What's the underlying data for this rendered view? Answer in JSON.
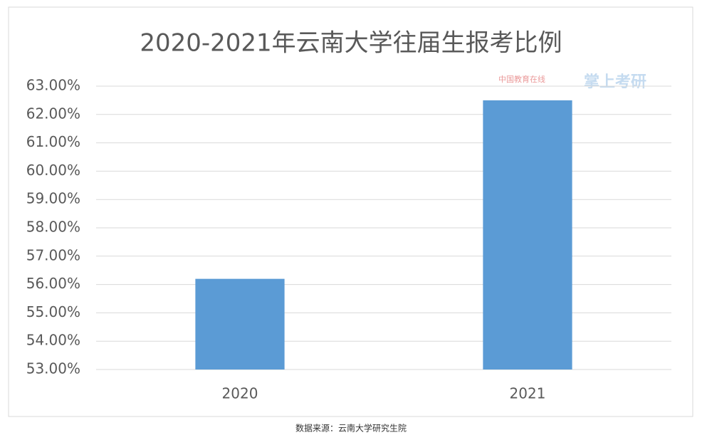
{
  "chart_data": {
    "type": "bar",
    "title": "2020-2021年云南大学往届生报考比例",
    "categories": [
      "2020",
      "2021"
    ],
    "values": [
      56.2,
      62.5
    ],
    "color": "#5b9bd5",
    "ylim": [
      53,
      63
    ],
    "yticks": [
      {
        "value": 53,
        "label": "53.00%"
      },
      {
        "value": 54,
        "label": "54.00%"
      },
      {
        "value": 55,
        "label": "55.00%"
      },
      {
        "value": 56,
        "label": "56.00%"
      },
      {
        "value": 57,
        "label": "57.00%"
      },
      {
        "value": 58,
        "label": "58.00%"
      },
      {
        "value": 59,
        "label": "59.00%"
      },
      {
        "value": 60,
        "label": "60.00%"
      },
      {
        "value": 61,
        "label": "61.00%"
      },
      {
        "value": 62,
        "label": "62.00%"
      },
      {
        "value": 63,
        "label": "63.00%"
      }
    ],
    "grid": true,
    "watermark": [
      "中国教育在线",
      "掌上考研"
    ],
    "source": "数据来源：云南大学研究生院"
  }
}
